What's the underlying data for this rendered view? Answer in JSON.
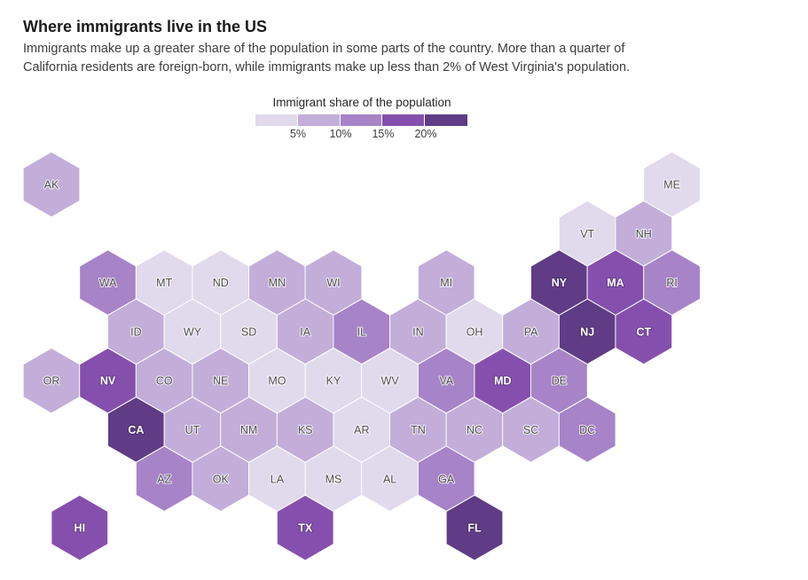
{
  "header": {
    "title": "Where immigrants live in the US",
    "subtitle": "Immigrants make up a greater share of the population in some parts of the country. More than a quarter of California residents are foreign-born, while immigrants make up less than 2% of West Virginia's population."
  },
  "legend": {
    "title": "Immigrant share of the population",
    "colors": [
      "#e1d9ec",
      "#c2aed9",
      "#a783c8",
      "#8550ad",
      "#5f3c85"
    ],
    "ticks": [
      "5%",
      "10%",
      "15%",
      "20%"
    ]
  },
  "map": {
    "states": [
      {
        "abbr": "AK",
        "row": 0,
        "col": 0,
        "bin": 1
      },
      {
        "abbr": "ME",
        "row": 0,
        "col": 11,
        "bin": 0
      },
      {
        "abbr": "VT",
        "row": 1,
        "col": 9,
        "bin": 0
      },
      {
        "abbr": "NH",
        "row": 1,
        "col": 10,
        "bin": 1
      },
      {
        "abbr": "WA",
        "row": 2,
        "col": 1,
        "bin": 2
      },
      {
        "abbr": "MT",
        "row": 2,
        "col": 2,
        "bin": 0
      },
      {
        "abbr": "ND",
        "row": 2,
        "col": 3,
        "bin": 0
      },
      {
        "abbr": "MN",
        "row": 2,
        "col": 4,
        "bin": 1
      },
      {
        "abbr": "WI",
        "row": 2,
        "col": 5,
        "bin": 1
      },
      {
        "abbr": "MI",
        "row": 2,
        "col": 7,
        "bin": 1
      },
      {
        "abbr": "NY",
        "row": 2,
        "col": 9,
        "bin": 4
      },
      {
        "abbr": "MA",
        "row": 2,
        "col": 10,
        "bin": 3
      },
      {
        "abbr": "RI",
        "row": 2,
        "col": 11,
        "bin": 2
      },
      {
        "abbr": "ID",
        "row": 3,
        "col": 1,
        "bin": 1
      },
      {
        "abbr": "WY",
        "row": 3,
        "col": 2,
        "bin": 0
      },
      {
        "abbr": "SD",
        "row": 3,
        "col": 3,
        "bin": 0
      },
      {
        "abbr": "IA",
        "row": 3,
        "col": 4,
        "bin": 1
      },
      {
        "abbr": "IL",
        "row": 3,
        "col": 5,
        "bin": 2
      },
      {
        "abbr": "IN",
        "row": 3,
        "col": 6,
        "bin": 1
      },
      {
        "abbr": "OH",
        "row": 3,
        "col": 7,
        "bin": 0
      },
      {
        "abbr": "PA",
        "row": 3,
        "col": 8,
        "bin": 1
      },
      {
        "abbr": "NJ",
        "row": 3,
        "col": 9,
        "bin": 4
      },
      {
        "abbr": "CT",
        "row": 3,
        "col": 10,
        "bin": 3
      },
      {
        "abbr": "OR",
        "row": 4,
        "col": 0,
        "bin": 1
      },
      {
        "abbr": "NV",
        "row": 4,
        "col": 1,
        "bin": 3
      },
      {
        "abbr": "CO",
        "row": 4,
        "col": 2,
        "bin": 1
      },
      {
        "abbr": "NE",
        "row": 4,
        "col": 3,
        "bin": 1
      },
      {
        "abbr": "MO",
        "row": 4,
        "col": 4,
        "bin": 0
      },
      {
        "abbr": "KY",
        "row": 4,
        "col": 5,
        "bin": 0
      },
      {
        "abbr": "WV",
        "row": 4,
        "col": 6,
        "bin": 0
      },
      {
        "abbr": "VA",
        "row": 4,
        "col": 7,
        "bin": 2
      },
      {
        "abbr": "MD",
        "row": 4,
        "col": 8,
        "bin": 3
      },
      {
        "abbr": "DE",
        "row": 4,
        "col": 9,
        "bin": 2
      },
      {
        "abbr": "CA",
        "row": 5,
        "col": 1,
        "bin": 4
      },
      {
        "abbr": "UT",
        "row": 5,
        "col": 2,
        "bin": 1
      },
      {
        "abbr": "NM",
        "row": 5,
        "col": 3,
        "bin": 1
      },
      {
        "abbr": "KS",
        "row": 5,
        "col": 4,
        "bin": 1
      },
      {
        "abbr": "AR",
        "row": 5,
        "col": 5,
        "bin": 0
      },
      {
        "abbr": "TN",
        "row": 5,
        "col": 6,
        "bin": 1
      },
      {
        "abbr": "NC",
        "row": 5,
        "col": 7,
        "bin": 1
      },
      {
        "abbr": "SC",
        "row": 5,
        "col": 8,
        "bin": 1
      },
      {
        "abbr": "DC",
        "row": 5,
        "col": 9,
        "bin": 2
      },
      {
        "abbr": "AZ",
        "row": 6,
        "col": 2,
        "bin": 2
      },
      {
        "abbr": "OK",
        "row": 6,
        "col": 3,
        "bin": 1
      },
      {
        "abbr": "LA",
        "row": 6,
        "col": 4,
        "bin": 0
      },
      {
        "abbr": "MS",
        "row": 6,
        "col": 5,
        "bin": 0
      },
      {
        "abbr": "AL",
        "row": 6,
        "col": 6,
        "bin": 0
      },
      {
        "abbr": "GA",
        "row": 6,
        "col": 7,
        "bin": 2
      },
      {
        "abbr": "HI",
        "row": 7,
        "col": 0,
        "bin": 3
      },
      {
        "abbr": "TX",
        "row": 7,
        "col": 4,
        "bin": 3
      },
      {
        "abbr": "FL",
        "row": 7,
        "col": 7,
        "bin": 4
      }
    ]
  }
}
